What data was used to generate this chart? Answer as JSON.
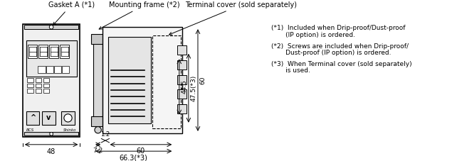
{
  "bg_color": "#ffffff",
  "line_color": "#000000",
  "fig_width": 6.42,
  "fig_height": 2.27,
  "dpi": 100,
  "labels": {
    "gasket": "Gasket A (*1)",
    "mounting": "Mounting frame (*2)",
    "terminal": "Terminal cover (sold separately)",
    "dim_48": "48",
    "dim_72": "7.2",
    "dim_12": "1.2",
    "dim_60": "60",
    "dim_663": "66.3(*3)",
    "dim_445": "44.5",
    "dim_475": "47.5(*3)",
    "dim_60v": "60",
    "note1": "(*1)  Included when Drip-proof/Dust-proof",
    "note1b": "       (IP option) is ordered.",
    "note2": "(*2)  Screws are included when Drip-proof/",
    "note2b": "       Dust-proof (IP option) is ordered.",
    "note3": "(*3)  When Terminal cover (sold separately)",
    "note3b": "       is used."
  }
}
